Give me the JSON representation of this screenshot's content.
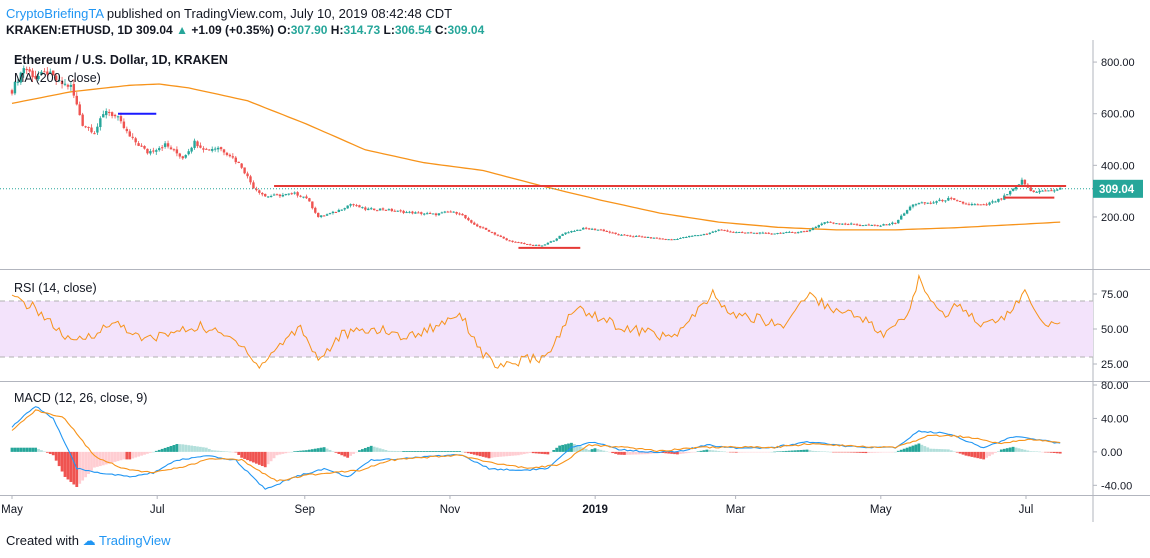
{
  "header": {
    "author": "CryptoBriefingTA",
    "published": "published on TradingView.com, July 10, 2019 08:42:48 CDT"
  },
  "ohlc": {
    "symbol": "KRAKEN:ETHUSD, 1D",
    "last": "309.04",
    "change": "+1.09 (+0.35%)",
    "o_label": "O:",
    "o": "307.90",
    "h_label": "H:",
    "h": "314.73",
    "l_label": "L:",
    "l": "306.54",
    "c_label": "C:",
    "c": "309.04"
  },
  "footer": {
    "created_with": "Created with",
    "brand": "TradingView"
  },
  "colors": {
    "up": "#26a69a",
    "down": "#ef5350",
    "ma": "#f7931a",
    "rsi": "#f7931a",
    "macd": "#2196f3",
    "signal": "#f7931a",
    "level": "#e53935",
    "blue_level": "#1a1aff"
  },
  "chart_data": [
    {
      "type": "candlestick",
      "title": "Ethereum / U.S. Dollar, 1D, KRAKEN",
      "indicator_label": "MA (200, close)",
      "ylim": [
        10,
        870
      ],
      "yticks": [
        {
          "value": 800,
          "label": "800.00"
        },
        {
          "value": 600,
          "label": "600.00"
        },
        {
          "value": 400,
          "label": "400.00"
        },
        {
          "value": 200,
          "label": "200.00"
        }
      ],
      "last_price": 309.04,
      "last_label": "309.04",
      "anchors": [
        {
          "day": 0,
          "price": 690
        },
        {
          "day": 4,
          "price": 780
        },
        {
          "day": 8,
          "price": 740
        },
        {
          "day": 12,
          "price": 760
        },
        {
          "day": 16,
          "price": 720
        },
        {
          "day": 20,
          "price": 705
        },
        {
          "day": 24,
          "price": 560
        },
        {
          "day": 28,
          "price": 530
        },
        {
          "day": 32,
          "price": 615
        },
        {
          "day": 36,
          "price": 580
        },
        {
          "day": 40,
          "price": 510
        },
        {
          "day": 46,
          "price": 450
        },
        {
          "day": 52,
          "price": 480
        },
        {
          "day": 58,
          "price": 430
        },
        {
          "day": 62,
          "price": 490
        },
        {
          "day": 66,
          "price": 460
        },
        {
          "day": 70,
          "price": 470
        },
        {
          "day": 74,
          "price": 440
        },
        {
          "day": 78,
          "price": 395
        },
        {
          "day": 82,
          "price": 315
        },
        {
          "day": 86,
          "price": 280
        },
        {
          "day": 92,
          "price": 285
        },
        {
          "day": 96,
          "price": 290
        },
        {
          "day": 100,
          "price": 275
        },
        {
          "day": 104,
          "price": 200
        },
        {
          "day": 110,
          "price": 220
        },
        {
          "day": 115,
          "price": 250
        },
        {
          "day": 120,
          "price": 230
        },
        {
          "day": 126,
          "price": 230
        },
        {
          "day": 132,
          "price": 220
        },
        {
          "day": 138,
          "price": 215
        },
        {
          "day": 144,
          "price": 210
        },
        {
          "day": 148,
          "price": 220
        },
        {
          "day": 152,
          "price": 215
        },
        {
          "day": 156,
          "price": 175
        },
        {
          "day": 162,
          "price": 145
        },
        {
          "day": 168,
          "price": 110
        },
        {
          "day": 174,
          "price": 95
        },
        {
          "day": 180,
          "price": 88
        },
        {
          "day": 184,
          "price": 110
        },
        {
          "day": 188,
          "price": 140
        },
        {
          "day": 194,
          "price": 155
        },
        {
          "day": 200,
          "price": 150
        },
        {
          "day": 206,
          "price": 130
        },
        {
          "day": 212,
          "price": 125
        },
        {
          "day": 218,
          "price": 118
        },
        {
          "day": 224,
          "price": 112
        },
        {
          "day": 230,
          "price": 125
        },
        {
          "day": 236,
          "price": 135
        },
        {
          "day": 240,
          "price": 150
        },
        {
          "day": 246,
          "price": 140
        },
        {
          "day": 252,
          "price": 138
        },
        {
          "day": 258,
          "price": 136
        },
        {
          "day": 264,
          "price": 140
        },
        {
          "day": 270,
          "price": 145
        },
        {
          "day": 276,
          "price": 180
        },
        {
          "day": 282,
          "price": 175
        },
        {
          "day": 288,
          "price": 170
        },
        {
          "day": 294,
          "price": 165
        },
        {
          "day": 300,
          "price": 178
        },
        {
          "day": 306,
          "price": 250
        },
        {
          "day": 312,
          "price": 255
        },
        {
          "day": 318,
          "price": 270
        },
        {
          "day": 324,
          "price": 250
        },
        {
          "day": 330,
          "price": 245
        },
        {
          "day": 336,
          "price": 270
        },
        {
          "day": 340,
          "price": 305
        },
        {
          "day": 343,
          "price": 340
        },
        {
          "day": 346,
          "price": 300
        },
        {
          "day": 352,
          "price": 300
        },
        {
          "day": 356,
          "price": 309
        }
      ],
      "ma200": [
        {
          "day": 0,
          "price": 640
        },
        {
          "day": 20,
          "price": 685
        },
        {
          "day": 40,
          "price": 710
        },
        {
          "day": 50,
          "price": 715
        },
        {
          "day": 60,
          "price": 700
        },
        {
          "day": 80,
          "price": 650
        },
        {
          "day": 100,
          "price": 560
        },
        {
          "day": 120,
          "price": 460
        },
        {
          "day": 140,
          "price": 410
        },
        {
          "day": 160,
          "price": 380
        },
        {
          "day": 180,
          "price": 320
        },
        {
          "day": 200,
          "price": 265
        },
        {
          "day": 220,
          "price": 215
        },
        {
          "day": 240,
          "price": 180
        },
        {
          "day": 260,
          "price": 160
        },
        {
          "day": 280,
          "price": 150
        },
        {
          "day": 300,
          "price": 150
        },
        {
          "day": 320,
          "price": 158
        },
        {
          "day": 340,
          "price": 170
        },
        {
          "day": 356,
          "price": 180
        }
      ],
      "levels": [
        {
          "name": "resistance",
          "color": "red",
          "price": 320,
          "day_start": 89,
          "day_end": 358
        },
        {
          "name": "support-low",
          "color": "red",
          "price": 80,
          "day_start": 172,
          "day_end": 193
        },
        {
          "name": "support-near",
          "color": "red",
          "price": 275,
          "day_start": 337,
          "day_end": 354
        },
        {
          "name": "old-support",
          "color": "blue",
          "price": 600,
          "day_start": 36,
          "day_end": 49
        }
      ]
    },
    {
      "type": "line",
      "title": "RSI (14, close)",
      "ylim": [
        15,
        90
      ],
      "band": [
        30,
        70
      ],
      "yticks": [
        {
          "value": 75,
          "label": "75.00"
        },
        {
          "value": 50,
          "label": "50.00"
        },
        {
          "value": 25,
          "label": "25.00"
        }
      ],
      "series": [
        {
          "day": 0,
          "v": 72
        },
        {
          "day": 8,
          "v": 65
        },
        {
          "day": 20,
          "v": 40
        },
        {
          "day": 28,
          "v": 47
        },
        {
          "day": 36,
          "v": 55
        },
        {
          "day": 44,
          "v": 42
        },
        {
          "day": 52,
          "v": 46
        },
        {
          "day": 64,
          "v": 52
        },
        {
          "day": 78,
          "v": 40
        },
        {
          "day": 84,
          "v": 22
        },
        {
          "day": 90,
          "v": 37
        },
        {
          "day": 98,
          "v": 52
        },
        {
          "day": 104,
          "v": 28
        },
        {
          "day": 112,
          "v": 46
        },
        {
          "day": 124,
          "v": 50
        },
        {
          "day": 134,
          "v": 44
        },
        {
          "day": 144,
          "v": 52
        },
        {
          "day": 152,
          "v": 62
        },
        {
          "day": 160,
          "v": 32
        },
        {
          "day": 166,
          "v": 22
        },
        {
          "day": 174,
          "v": 28
        },
        {
          "day": 182,
          "v": 30
        },
        {
          "day": 188,
          "v": 55
        },
        {
          "day": 192,
          "v": 65
        },
        {
          "day": 200,
          "v": 58
        },
        {
          "day": 208,
          "v": 50
        },
        {
          "day": 216,
          "v": 48
        },
        {
          "day": 224,
          "v": 43
        },
        {
          "day": 232,
          "v": 60
        },
        {
          "day": 238,
          "v": 75
        },
        {
          "day": 244,
          "v": 60
        },
        {
          "day": 252,
          "v": 58
        },
        {
          "day": 262,
          "v": 52
        },
        {
          "day": 270,
          "v": 75
        },
        {
          "day": 280,
          "v": 63
        },
        {
          "day": 288,
          "v": 60
        },
        {
          "day": 296,
          "v": 45
        },
        {
          "day": 304,
          "v": 60
        },
        {
          "day": 308,
          "v": 85
        },
        {
          "day": 316,
          "v": 60
        },
        {
          "day": 322,
          "v": 68
        },
        {
          "day": 330,
          "v": 52
        },
        {
          "day": 338,
          "v": 60
        },
        {
          "day": 344,
          "v": 76
        },
        {
          "day": 350,
          "v": 52
        },
        {
          "day": 356,
          "v": 57
        }
      ]
    },
    {
      "type": "macd",
      "title": "MACD (12, 26, close, 9)",
      "ylim": [
        -48,
        80
      ],
      "yticks": [
        {
          "value": 80,
          "label": "80.00"
        },
        {
          "value": 40,
          "label": "40.00"
        },
        {
          "value": 0,
          "label": "0.00"
        },
        {
          "value": -40,
          "label": "-40.00"
        }
      ],
      "macd": [
        {
          "day": 0,
          "v": 30
        },
        {
          "day": 8,
          "v": 55
        },
        {
          "day": 14,
          "v": 40
        },
        {
          "day": 22,
          "v": -20
        },
        {
          "day": 30,
          "v": -25
        },
        {
          "day": 40,
          "v": -30
        },
        {
          "day": 48,
          "v": -25
        },
        {
          "day": 56,
          "v": -10
        },
        {
          "day": 66,
          "v": -5
        },
        {
          "day": 76,
          "v": -10
        },
        {
          "day": 86,
          "v": -45
        },
        {
          "day": 96,
          "v": -30
        },
        {
          "day": 106,
          "v": -20
        },
        {
          "day": 114,
          "v": -30
        },
        {
          "day": 122,
          "v": -10
        },
        {
          "day": 132,
          "v": -8
        },
        {
          "day": 144,
          "v": -5
        },
        {
          "day": 152,
          "v": -3
        },
        {
          "day": 162,
          "v": -20
        },
        {
          "day": 172,
          "v": -22
        },
        {
          "day": 182,
          "v": -20
        },
        {
          "day": 190,
          "v": 5
        },
        {
          "day": 198,
          "v": 12
        },
        {
          "day": 206,
          "v": 3
        },
        {
          "day": 216,
          "v": 0
        },
        {
          "day": 226,
          "v": 0
        },
        {
          "day": 236,
          "v": 8
        },
        {
          "day": 246,
          "v": 5
        },
        {
          "day": 258,
          "v": 5
        },
        {
          "day": 270,
          "v": 12
        },
        {
          "day": 280,
          "v": 8
        },
        {
          "day": 290,
          "v": 5
        },
        {
          "day": 300,
          "v": 5
        },
        {
          "day": 308,
          "v": 25
        },
        {
          "day": 318,
          "v": 22
        },
        {
          "day": 330,
          "v": 5
        },
        {
          "day": 340,
          "v": 18
        },
        {
          "day": 348,
          "v": 15
        },
        {
          "day": 356,
          "v": 10
        }
      ],
      "signal": [
        {
          "day": 0,
          "v": 25
        },
        {
          "day": 8,
          "v": 50
        },
        {
          "day": 18,
          "v": 40
        },
        {
          "day": 28,
          "v": -5
        },
        {
          "day": 38,
          "v": -20
        },
        {
          "day": 48,
          "v": -25
        },
        {
          "day": 58,
          "v": -18
        },
        {
          "day": 68,
          "v": -8
        },
        {
          "day": 78,
          "v": -10
        },
        {
          "day": 90,
          "v": -35
        },
        {
          "day": 100,
          "v": -28
        },
        {
          "day": 110,
          "v": -24
        },
        {
          "day": 118,
          "v": -22
        },
        {
          "day": 128,
          "v": -10
        },
        {
          "day": 140,
          "v": -7
        },
        {
          "day": 152,
          "v": -4
        },
        {
          "day": 164,
          "v": -14
        },
        {
          "day": 176,
          "v": -20
        },
        {
          "day": 186,
          "v": -15
        },
        {
          "day": 196,
          "v": 8
        },
        {
          "day": 208,
          "v": 6
        },
        {
          "day": 220,
          "v": 1
        },
        {
          "day": 232,
          "v": 5
        },
        {
          "day": 244,
          "v": 6
        },
        {
          "day": 258,
          "v": 5
        },
        {
          "day": 272,
          "v": 10
        },
        {
          "day": 286,
          "v": 7
        },
        {
          "day": 300,
          "v": 5
        },
        {
          "day": 312,
          "v": 20
        },
        {
          "day": 324,
          "v": 18
        },
        {
          "day": 336,
          "v": 10
        },
        {
          "day": 346,
          "v": 15
        },
        {
          "day": 356,
          "v": 12
        }
      ]
    }
  ],
  "time_axis": {
    "days_total": 357,
    "labels": [
      {
        "day": 0,
        "label": "May",
        "bold": false
      },
      {
        "day": 61,
        "label": "Jul",
        "bold": false
      },
      {
        "day": 123,
        "label": "Sep",
        "bold": false
      },
      {
        "day": 184,
        "label": "Nov",
        "bold": false
      },
      {
        "day": 245,
        "label": "2019",
        "bold": true
      },
      {
        "day": 304,
        "label": "Mar",
        "bold": false
      },
      {
        "day": 365,
        "label": "May",
        "bold": false
      },
      {
        "day": 426,
        "label": "Jul",
        "bold": false
      }
    ]
  }
}
